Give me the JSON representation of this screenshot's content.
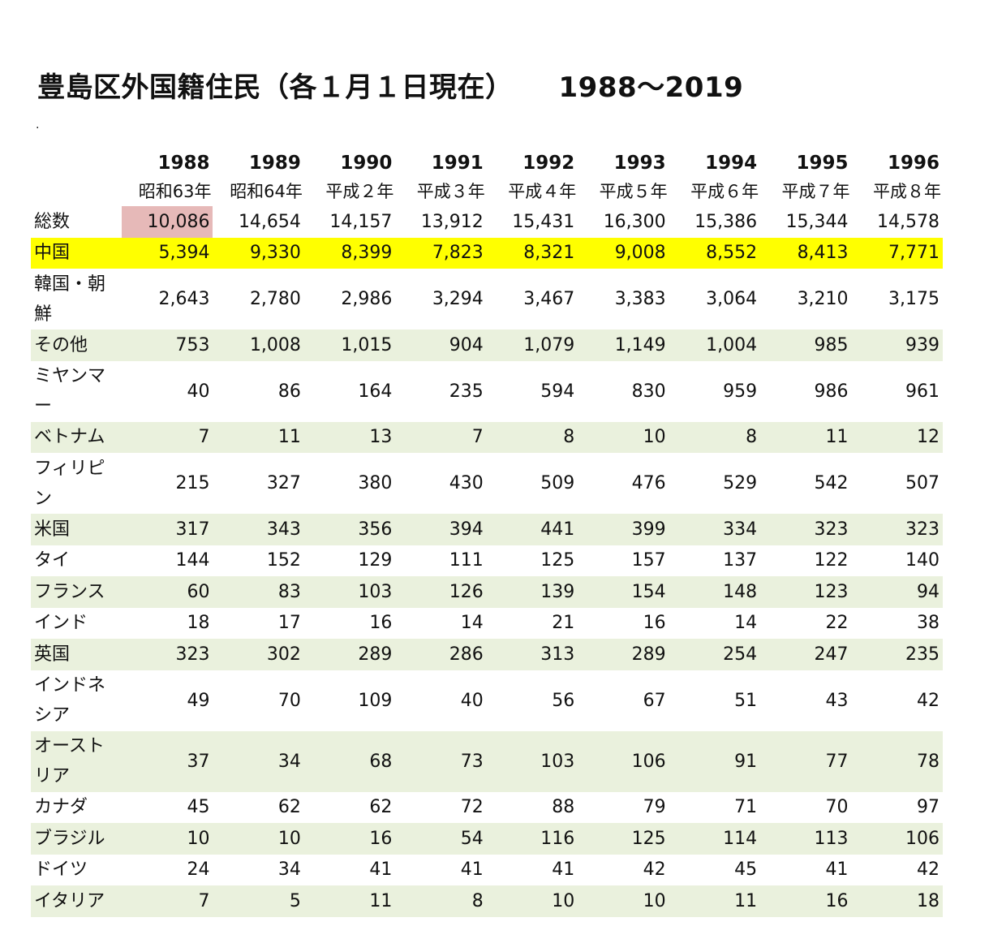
{
  "title": "豊島区外国籍住民（各１月１日現在）",
  "title_range": "1988〜2019",
  "dot": ".",
  "years": [
    "1988",
    "1989",
    "1990",
    "1991",
    "1992",
    "1993",
    "1994",
    "1995",
    "1996"
  ],
  "eras": [
    "昭和63年",
    "昭和64年",
    "平成２年",
    "平成３年",
    "平成４年",
    "平成５年",
    "平成６年",
    "平成７年",
    "平成８年"
  ],
  "rows": [
    {
      "label": "総数",
      "values": [
        "10,086",
        "14,654",
        "14,157",
        "13,912",
        "15,431",
        "16,300",
        "15,386",
        "15,344",
        "14,578"
      ]
    },
    {
      "label": "中国",
      "values": [
        "5,394",
        "9,330",
        "8,399",
        "7,823",
        "8,321",
        "9,008",
        "8,552",
        "8,413",
        "7,771"
      ]
    },
    {
      "label": "韓国・朝鮮",
      "values": [
        "2,643",
        "2,780",
        "2,986",
        "3,294",
        "3,467",
        "3,383",
        "3,064",
        "3,210",
        "3,175"
      ]
    },
    {
      "label": "その他",
      "values": [
        "753",
        "1,008",
        "1,015",
        "904",
        "1,079",
        "1,149",
        "1,004",
        "985",
        "939"
      ]
    },
    {
      "label": "ミヤンマー",
      "values": [
        "40",
        "86",
        "164",
        "235",
        "594",
        "830",
        "959",
        "986",
        "961"
      ]
    },
    {
      "label": "ベトナム",
      "values": [
        "7",
        "11",
        "13",
        "7",
        "8",
        "10",
        "8",
        "11",
        "12"
      ]
    },
    {
      "label": "フィリピン",
      "values": [
        "215",
        "327",
        "380",
        "430",
        "509",
        "476",
        "529",
        "542",
        "507"
      ]
    },
    {
      "label": "米国",
      "values": [
        "317",
        "343",
        "356",
        "394",
        "441",
        "399",
        "334",
        "323",
        "323"
      ]
    },
    {
      "label": "タイ",
      "values": [
        "144",
        "152",
        "129",
        "111",
        "125",
        "157",
        "137",
        "122",
        "140"
      ]
    },
    {
      "label": "フランス",
      "values": [
        "60",
        "83",
        "103",
        "126",
        "139",
        "154",
        "148",
        "123",
        "94"
      ]
    },
    {
      "label": "インド",
      "values": [
        "18",
        "17",
        "16",
        "14",
        "21",
        "16",
        "14",
        "22",
        "38"
      ]
    },
    {
      "label": "英国",
      "values": [
        "323",
        "302",
        "289",
        "286",
        "313",
        "289",
        "254",
        "247",
        "235"
      ]
    },
    {
      "label": "インドネシア",
      "values": [
        "49",
        "70",
        "109",
        "40",
        "56",
        "67",
        "51",
        "43",
        "42"
      ]
    },
    {
      "label": "オーストリア",
      "values": [
        "37",
        "34",
        "68",
        "73",
        "103",
        "106",
        "91",
        "77",
        "78"
      ]
    },
    {
      "label": "カナダ",
      "values": [
        "45",
        "62",
        "62",
        "72",
        "88",
        "79",
        "71",
        "70",
        "97"
      ]
    },
    {
      "label": "ブラジル",
      "values": [
        "10",
        "10",
        "16",
        "54",
        "116",
        "125",
        "114",
        "113",
        "106"
      ]
    },
    {
      "label": "ドイツ",
      "values": [
        "24",
        "34",
        "41",
        "41",
        "41",
        "42",
        "45",
        "41",
        "42"
      ]
    },
    {
      "label": "イタリア",
      "values": [
        "7",
        "5",
        "11",
        "8",
        "10",
        "10",
        "11",
        "16",
        "18"
      ]
    }
  ],
  "colors": {
    "highlight_row": "#ffff00",
    "highlight_cell": "#e6b9b8",
    "band_row": "#eaf1dd"
  }
}
